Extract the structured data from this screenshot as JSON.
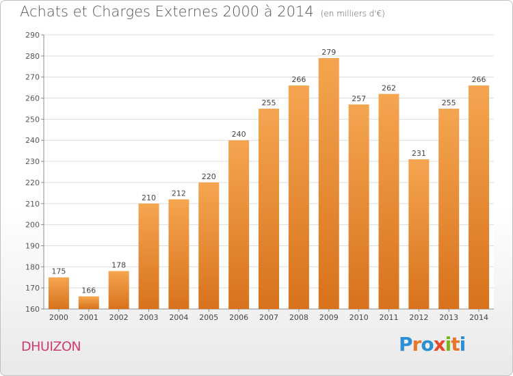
{
  "header": {
    "title": "Achats et Charges Externes 2000 à 2014",
    "unit": "(en milliers d'€)"
  },
  "footer": {
    "place": "DHUIZON",
    "logo_text": "Proxiti"
  },
  "colors": {
    "bar_top": "#f5a550",
    "bar_bottom": "#d8721c",
    "title": "#555555",
    "place": "#d23b70",
    "logo_letters": [
      "#2b8fd6",
      "#e8772a",
      "#2b8fd6",
      "#e8472a",
      "#7ab51d",
      "#e8772a",
      "#2b8fd6"
    ]
  },
  "chart_data": {
    "type": "bar",
    "categories": [
      "2000",
      "2001",
      "2002",
      "2003",
      "2004",
      "2005",
      "2006",
      "2007",
      "2008",
      "2009",
      "2010",
      "2011",
      "2012",
      "2013",
      "2014"
    ],
    "values": [
      175,
      166,
      178,
      210,
      212,
      220,
      240,
      255,
      266,
      279,
      257,
      262,
      231,
      255,
      266
    ],
    "title": "Achats et Charges Externes 2000 à 2014",
    "ylim": [
      160,
      290
    ],
    "yticks": [
      160,
      170,
      180,
      190,
      200,
      210,
      220,
      230,
      240,
      250,
      260,
      270,
      280,
      290
    ],
    "grid": true,
    "data_labels": true
  }
}
